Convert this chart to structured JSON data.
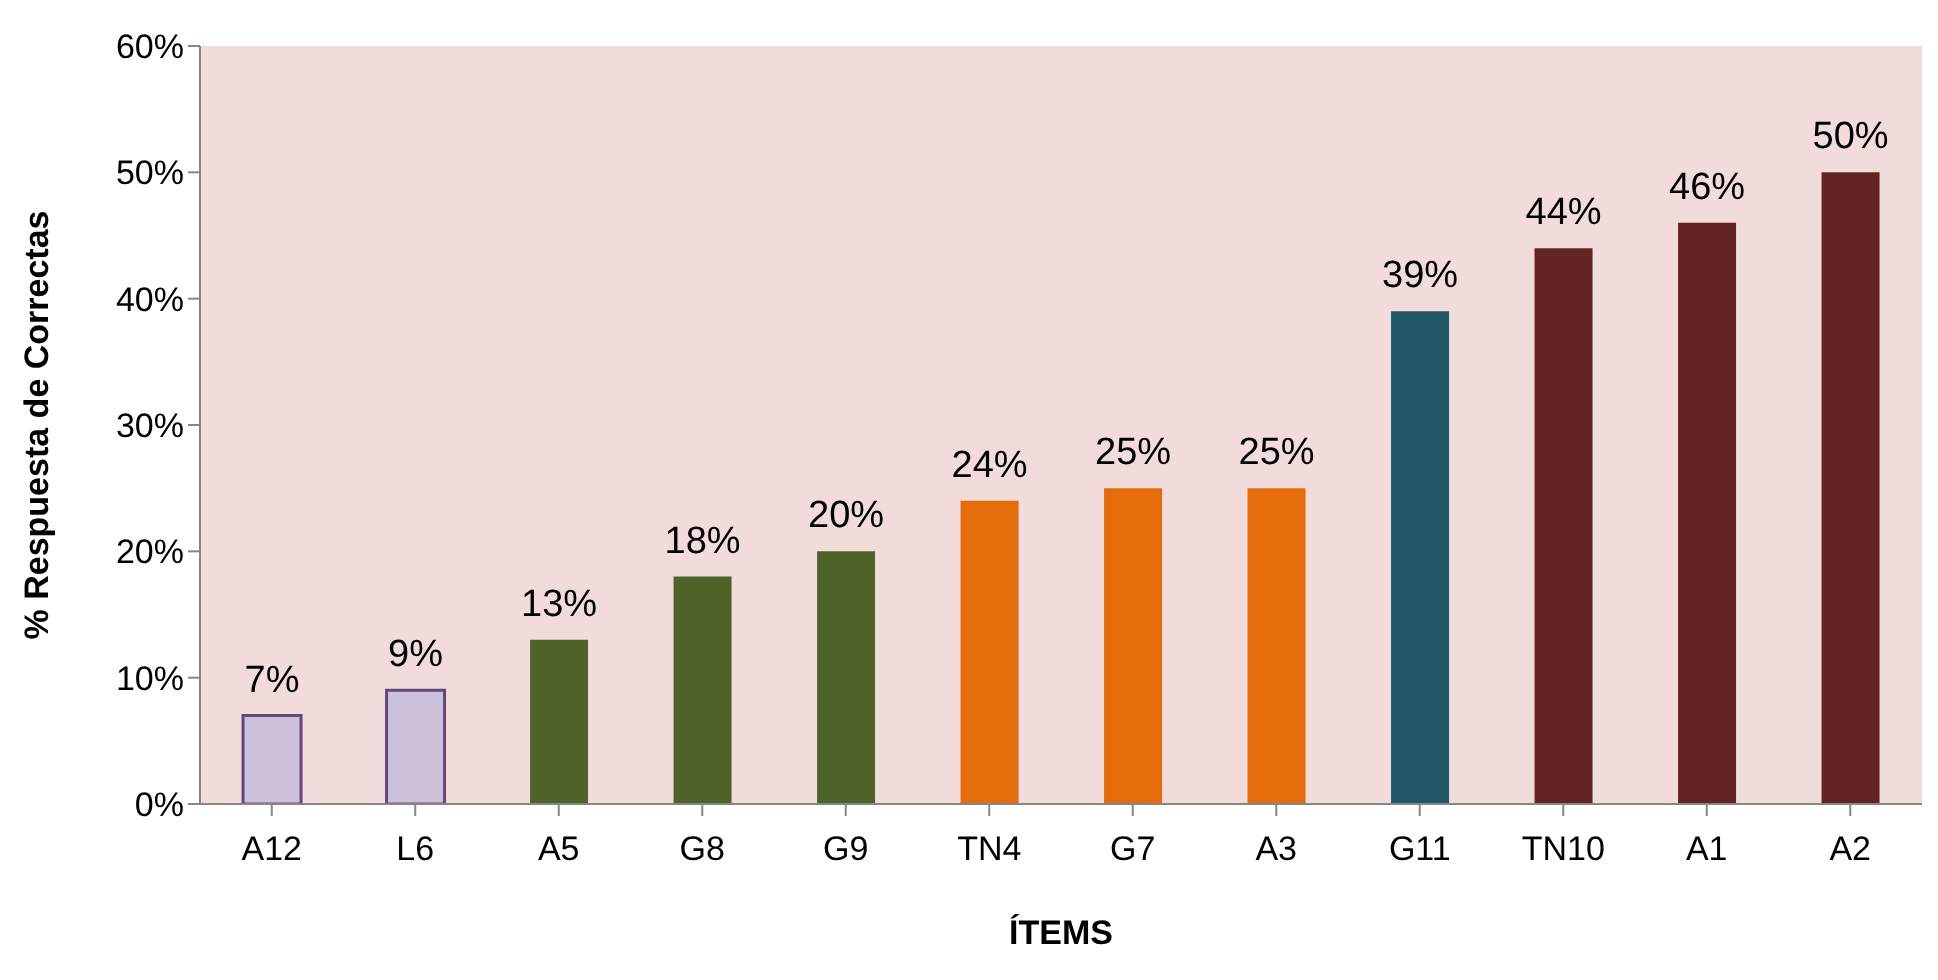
{
  "chart_data": {
    "type": "bar",
    "xlabel": "ÍTEMS",
    "ylabel": "% Respuesta de Correctas",
    "categories": [
      "A12",
      "L6",
      "A5",
      "G8",
      "G9",
      "TN4",
      "G7",
      "A3",
      "G11",
      "TN10",
      "A1",
      "A2"
    ],
    "values": [
      7,
      9,
      13,
      18,
      20,
      24,
      25,
      25,
      39,
      44,
      46,
      50
    ],
    "value_labels": [
      "7%",
      "9%",
      "13%",
      "18%",
      "20%",
      "24%",
      "25%",
      "25%",
      "39%",
      "44%",
      "46%",
      "50%"
    ],
    "colors": [
      "#ccc0da",
      "#ccc0da",
      "#4f6228",
      "#4f6228",
      "#4f6228",
      "#e46c0a",
      "#e46c0a",
      "#e46c0a",
      "#215868",
      "#632523",
      "#632523",
      "#632523"
    ],
    "ylim": [
      0,
      60
    ],
    "yticks": [
      {
        "value": 0,
        "label": "0%"
      },
      {
        "value": 10,
        "label": "10%"
      },
      {
        "value": 20,
        "label": "20%"
      },
      {
        "value": 30,
        "label": "30%"
      },
      {
        "value": 40,
        "label": "40%"
      },
      {
        "value": 50,
        "label": "50%"
      },
      {
        "value": 60,
        "label": "60%"
      }
    ],
    "grid": false,
    "legend": false
  }
}
